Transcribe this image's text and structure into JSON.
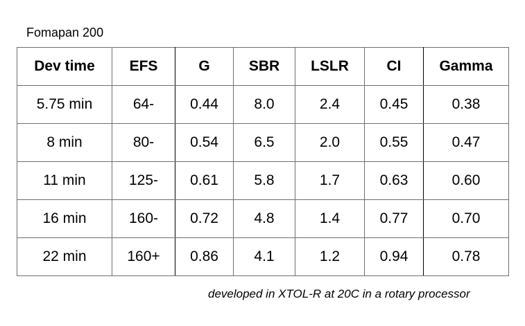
{
  "caption": "Fomapan 200",
  "table": {
    "headers": [
      "Dev time",
      "EFS",
      "G",
      "SBR",
      "LSLR",
      "CI",
      "Gamma"
    ],
    "rows": [
      [
        "5.75 min",
        "64-",
        "0.44",
        "8.0",
        "2.4",
        "0.45",
        "0.38"
      ],
      [
        "8 min",
        "80-",
        "0.54",
        "6.5",
        "2.0",
        "0.55",
        "0.47"
      ],
      [
        "11 min",
        "125-",
        "0.61",
        "5.8",
        "1.7",
        "0.63",
        "0.60"
      ],
      [
        "16 min",
        "160-",
        "0.72",
        "4.8",
        "1.4",
        "0.77",
        "0.70"
      ],
      [
        "22 min",
        "160+",
        "0.86",
        "4.1",
        "1.2",
        "0.94",
        "0.78"
      ]
    ]
  },
  "footnote": "developed in XTOL-R at 20C in a rotary processor"
}
